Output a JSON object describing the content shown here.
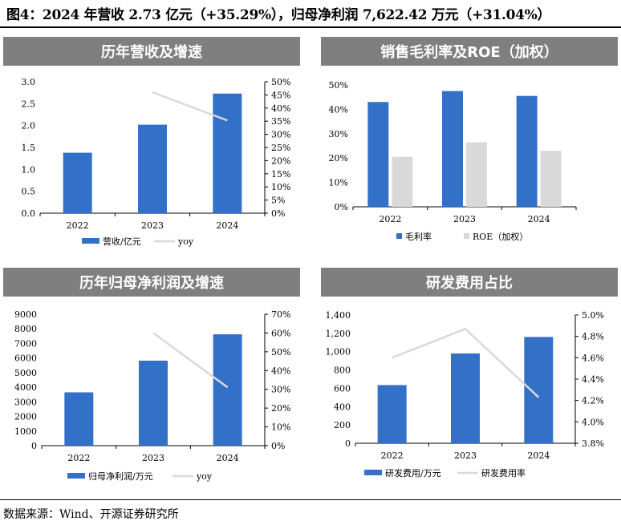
{
  "figure_title": "图4：2024 年营收 2.73 亿元（+35.29%），归母净利润 7,622.42 万元（+31.04%）",
  "source_note": "数据来源：Wind、开源证券研究所",
  "colors": {
    "blue": "#3370c8",
    "gray": "#d9d9d9",
    "line": "#d9d9d9",
    "panel_title_bg": "#7f7f7f"
  },
  "chart_data": [
    {
      "type": "bar",
      "title": "历年营收及增速",
      "categories": [
        "2022",
        "2023",
        "2024"
      ],
      "series": [
        {
          "name": "营收/亿元",
          "kind": "bar",
          "axis": "left",
          "values": [
            1.38,
            2.02,
            2.73
          ]
        },
        {
          "name": "yoy",
          "kind": "line",
          "axis": "right",
          "values": [
            null,
            0.46,
            0.3529
          ]
        }
      ],
      "ylim": [
        0,
        3.0
      ],
      "y_ticks": [
        "3.0",
        "2.5",
        "2.0",
        "1.5",
        "1.0",
        "0.5",
        "0.0"
      ],
      "y2lim": [
        0,
        0.5
      ],
      "y2_ticks": [
        "50%",
        "45%",
        "40%",
        "35%",
        "30%",
        "25%",
        "20%",
        "15%",
        "10%",
        "5%",
        "0%"
      ],
      "legend_position": "bottom"
    },
    {
      "type": "bar",
      "title": "销售毛利率及ROE（加权）",
      "categories": [
        "2022",
        "2023",
        "2024"
      ],
      "series": [
        {
          "name": "毛利率",
          "kind": "bar",
          "axis": "left",
          "values": [
            0.43,
            0.475,
            0.455
          ]
        },
        {
          "name": "ROE（加权）",
          "kind": "bar",
          "axis": "left",
          "values": [
            0.205,
            0.265,
            0.23
          ]
        }
      ],
      "ylim": [
        0,
        0.5
      ],
      "y_ticks": [
        "50%",
        "40%",
        "30%",
        "20%",
        "10%",
        "0%"
      ],
      "legend_position": "bottom"
    },
    {
      "type": "bar",
      "title": "历年归母净利润及增速",
      "categories": [
        "2022",
        "2023",
        "2024"
      ],
      "series": [
        {
          "name": "归母净利润/万元",
          "kind": "bar",
          "axis": "left",
          "values": [
            3650,
            5820,
            7622.42
          ]
        },
        {
          "name": "yoy",
          "kind": "line",
          "axis": "right",
          "values": [
            null,
            0.6,
            0.3104
          ]
        }
      ],
      "ylim": [
        0,
        9000
      ],
      "y_ticks": [
        "9000",
        "8000",
        "7000",
        "6000",
        "5000",
        "4000",
        "3000",
        "2000",
        "1000",
        "0"
      ],
      "y2lim": [
        0,
        0.7
      ],
      "y2_ticks": [
        "70%",
        "60%",
        "50%",
        "40%",
        "30%",
        "20%",
        "10%",
        "0%"
      ],
      "legend_position": "bottom"
    },
    {
      "type": "bar",
      "title": "研发费用占比",
      "categories": [
        "2022",
        "2023",
        "2024"
      ],
      "series": [
        {
          "name": "研发费用/万元",
          "kind": "bar",
          "axis": "left",
          "values": [
            635,
            980,
            1160
          ]
        },
        {
          "name": "研发费用率",
          "kind": "line",
          "axis": "right",
          "values": [
            0.046,
            0.0487,
            0.0423
          ]
        }
      ],
      "ylim": [
        0,
        1400
      ],
      "y_ticks": [
        "1,400",
        "1,200",
        "1,000",
        "800",
        "600",
        "400",
        "200",
        "0"
      ],
      "y2lim": [
        0.038,
        0.05
      ],
      "y2_ticks": [
        "5.0%",
        "4.8%",
        "4.6%",
        "4.4%",
        "4.2%",
        "4.0%",
        "3.8%"
      ],
      "legend_position": "bottom"
    }
  ]
}
